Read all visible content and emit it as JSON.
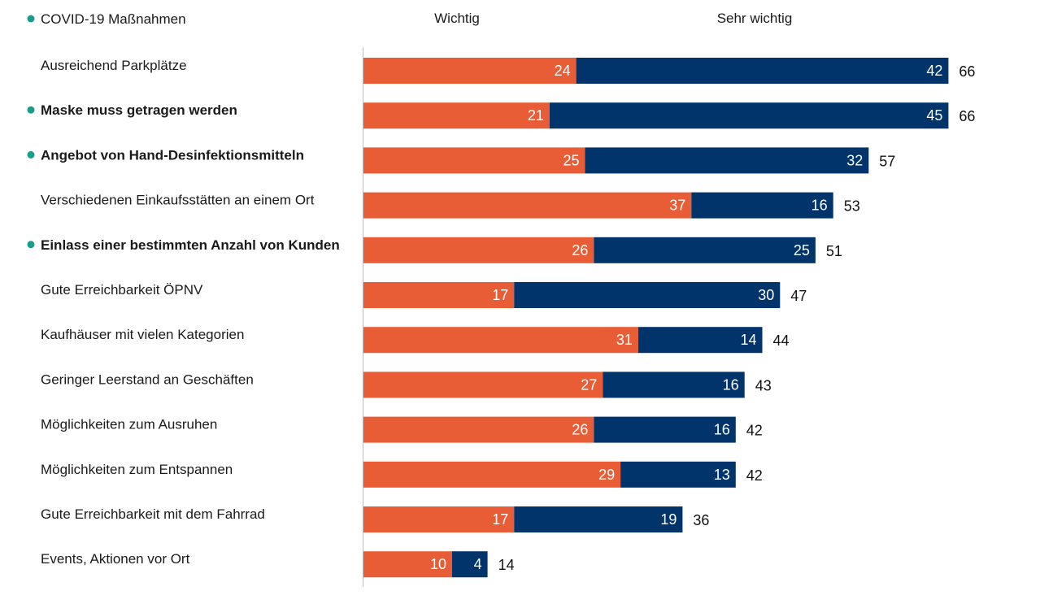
{
  "chart_data": {
    "type": "bar",
    "orientation": "horizontal",
    "stacked": true,
    "legend_note": {
      "marker": "dot",
      "text": "COVID-19 Maßnahmen",
      "color": "#1a9c8c"
    },
    "series": [
      {
        "name": "Wichtig",
        "color": "#e95d36",
        "values": [
          24,
          21,
          25,
          37,
          26,
          17,
          31,
          27,
          26,
          29,
          17,
          10
        ]
      },
      {
        "name": "Sehr wichtig",
        "color": "#00346b",
        "values": [
          42,
          45,
          32,
          16,
          25,
          30,
          14,
          16,
          16,
          13,
          19,
          4
        ]
      }
    ],
    "totals": [
      66,
      66,
      57,
      53,
      51,
      47,
      44,
      43,
      42,
      42,
      36,
      14
    ],
    "categories": [
      "Ausreichend Parkplätze",
      "Maske muss getragen werden",
      "Angebot von Hand-Desinfektionsmitteln",
      "Verschiedenen Einkaufsstätten an einem Ort",
      "Einlass einer bestimmten Anzahl von Kunden",
      "Gute Erreichbarkeit ÖPNV",
      "Kaufhäuser mit vielen Kategorien",
      "Geringer Leerstand an Geschäften",
      "Möglichkeiten zum Ausruhen",
      "Möglichkeiten zum Entspannen",
      "Gute Erreichbarkeit mit dem Fahrrad",
      "Events, Aktionen vor Ort"
    ],
    "covid_flags": [
      false,
      true,
      true,
      false,
      true,
      false,
      false,
      false,
      false,
      false,
      false,
      false
    ],
    "xlim": [
      0,
      70
    ],
    "grid": false,
    "legend_position": "top"
  }
}
